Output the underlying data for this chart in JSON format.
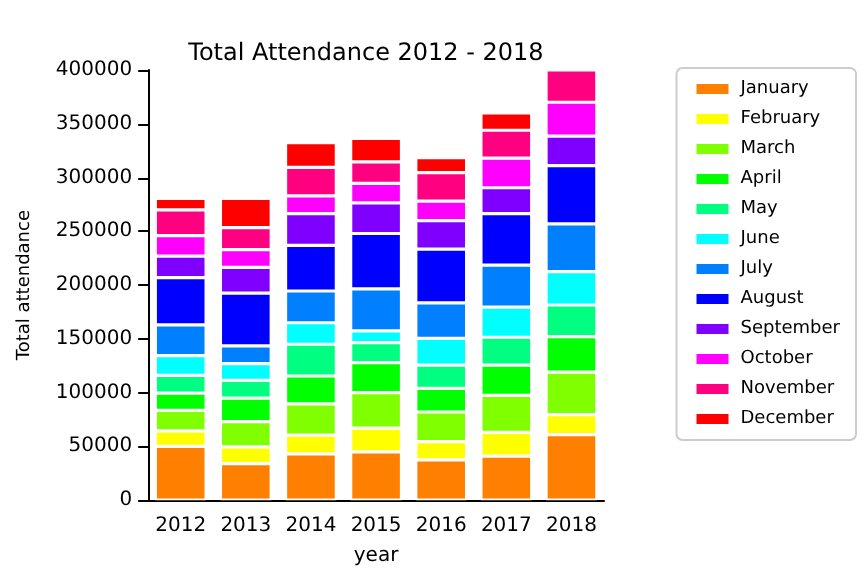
{
  "chart_data": {
    "type": "bar",
    "title": "Total Attendance 2012 - 2018",
    "xlabel": "year",
    "ylabel": "Total attendance",
    "stacked": true,
    "legend": "right",
    "grid": false,
    "categories": [
      "2012",
      "2013",
      "2014",
      "2015",
      "2016",
      "2017",
      "2018"
    ],
    "ylim": [
      0,
      400000
    ],
    "yticks": [
      0,
      50000,
      100000,
      150000,
      200000,
      250000,
      300000,
      350000,
      400000
    ],
    "series": [
      {
        "name": "January",
        "color": "#ff8000",
        "values": [
          50000,
          34000,
          43000,
          45000,
          37500,
          41000,
          61000
        ]
      },
      {
        "name": "February",
        "color": "#ffff00",
        "values": [
          14500,
          15500,
          17500,
          22000,
          17000,
          22000,
          18500
        ]
      },
      {
        "name": "March",
        "color": "#80ff00",
        "values": [
          19000,
          23500,
          29000,
          33000,
          27500,
          34500,
          39500
        ]
      },
      {
        "name": "April",
        "color": "#00ff00",
        "values": [
          16000,
          22000,
          26000,
          28000,
          22000,
          28000,
          33000
        ]
      },
      {
        "name": "May",
        "color": "#00ff80",
        "values": [
          16500,
          16500,
          29500,
          18500,
          21500,
          26000,
          29500
        ]
      },
      {
        "name": "June",
        "color": "#00ffff",
        "values": [
          18500,
          15500,
          20000,
          11000,
          25000,
          28000,
          31000
        ]
      },
      {
        "name": "July",
        "color": "#0080ff",
        "values": [
          28500,
          16500,
          29500,
          39000,
          33000,
          39000,
          44500
        ]
      },
      {
        "name": "August",
        "color": "#0000ff",
        "values": [
          44000,
          49000,
          42500,
          51500,
          50000,
          48000,
          54000
        ]
      },
      {
        "name": "September",
        "color": "#8000ff",
        "values": [
          20000,
          24000,
          29500,
          28500,
          26500,
          24000,
          27500
        ]
      },
      {
        "name": "October",
        "color": "#ff00ff",
        "values": [
          19000,
          16500,
          16500,
          18000,
          18000,
          27500,
          31500
        ]
      },
      {
        "name": "November",
        "color": "#ff0080",
        "values": [
          24000,
          20500,
          26500,
          20000,
          26500,
          26000,
          30000
        ]
      },
      {
        "name": "December",
        "color": "#ff0000",
        "values": [
          10500,
          27000,
          23000,
          22000,
          14000,
          16000,
          null
        ]
      }
    ]
  }
}
